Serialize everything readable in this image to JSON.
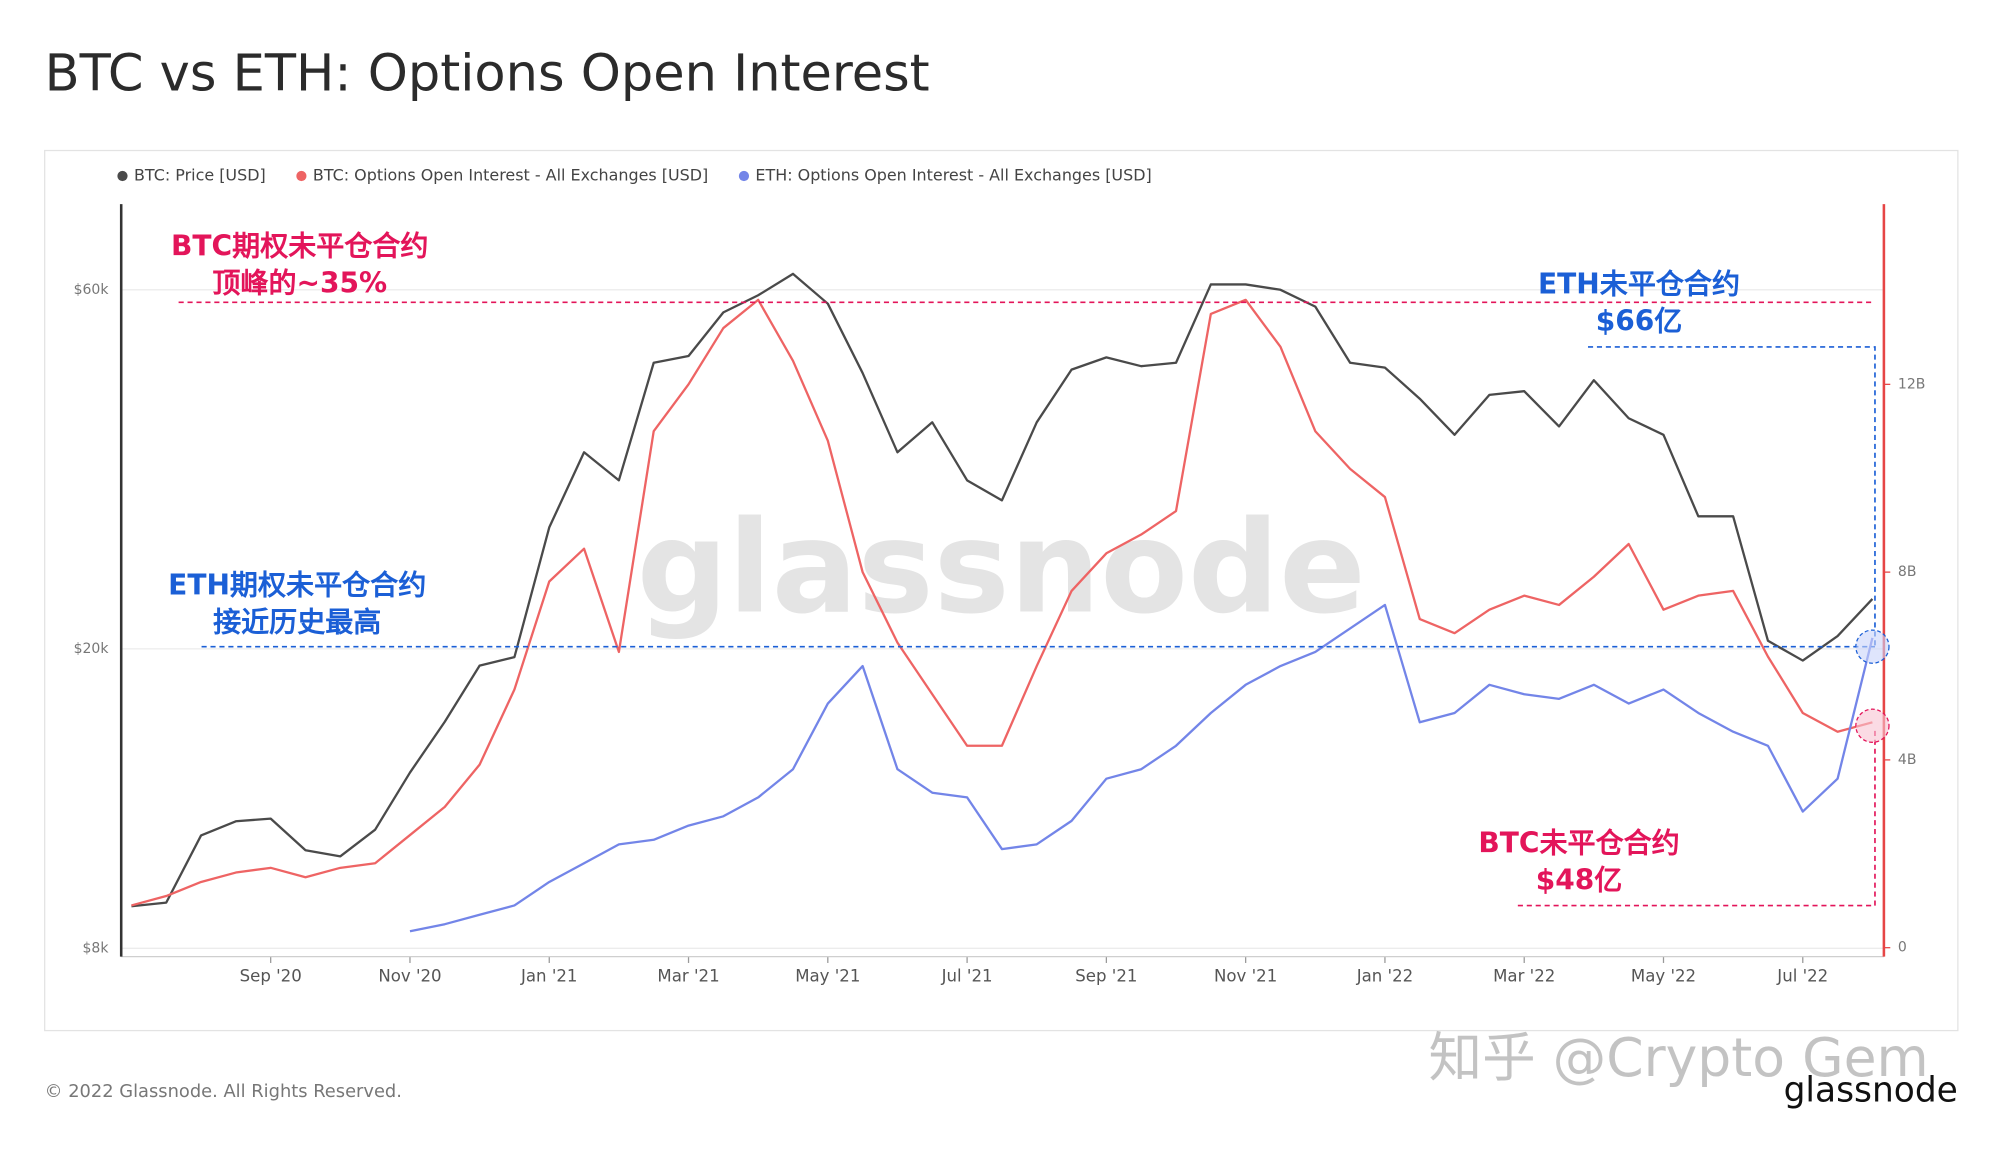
{
  "chart_data": {
    "type": "line",
    "title": "BTC vs ETH: Options Open Interest",
    "categories": [
      null,
      null,
      null,
      null,
      "Sep '20",
      null,
      null,
      null,
      "Nov '20",
      null,
      null,
      null,
      "Jan '21",
      null,
      null,
      null,
      "Mar '21",
      null,
      null,
      null,
      "May '21",
      null,
      null,
      null,
      "Jul '21",
      null,
      null,
      null,
      "Sep '21",
      null,
      null,
      null,
      "Nov '21",
      null,
      null,
      null,
      "Jan '22",
      null,
      null,
      null,
      "Mar '22",
      null,
      null,
      null,
      "May '22",
      null,
      null,
      null,
      "Jul '22",
      null,
      null
    ],
    "series": [
      {
        "name": "BTC: Price [USD]",
        "color": "#4a4a4a",
        "axis": "y",
        "values": [
          9100,
          9200,
          11300,
          11800,
          11900,
          10800,
          10600,
          11500,
          13700,
          16000,
          19000,
          19500,
          29000,
          36500,
          33500,
          48000,
          49000,
          56000,
          59000,
          63000,
          57500,
          46500,
          36500,
          40000,
          33500,
          31500,
          40000,
          47000,
          48800,
          47500,
          48000,
          61000,
          61000,
          60000,
          57000,
          48000,
          47300,
          43000,
          38500,
          43500,
          44000,
          39500,
          45500,
          40500,
          38500,
          30000,
          30000,
          20500,
          19300,
          20800,
          23300
        ]
      },
      {
        "name": "BTC: Options Open Interest - All Exchanges [USD]",
        "color": "#ee6464",
        "axis": "y2",
        "values": [
          0.9,
          1.1,
          1.4,
          1.6,
          1.7,
          1.5,
          1.7,
          1.8,
          2.4,
          3.0,
          3.9,
          5.5,
          7.8,
          8.5,
          6.3,
          11.0,
          12.0,
          13.2,
          13.8,
          12.5,
          10.8,
          8.0,
          6.5,
          5.4,
          4.3,
          4.3,
          6.0,
          7.6,
          8.4,
          8.8,
          9.3,
          13.5,
          13.8,
          12.8,
          11.0,
          10.2,
          9.6,
          7.0,
          6.7,
          7.2,
          7.5,
          7.3,
          7.9,
          8.6,
          7.2,
          7.5,
          7.6,
          6.2,
          5.0,
          4.6,
          4.8
        ]
      },
      {
        "name": "ETH: Options Open Interest - All Exchanges [USD]",
        "color": "#7385e8",
        "axis": "y2",
        "values": [
          null,
          null,
          null,
          null,
          null,
          null,
          null,
          null,
          0.35,
          0.5,
          0.7,
          0.9,
          1.4,
          1.8,
          2.2,
          2.3,
          2.6,
          2.8,
          3.2,
          3.8,
          5.2,
          6.0,
          3.8,
          3.3,
          3.2,
          2.1,
          2.2,
          2.7,
          3.6,
          3.8,
          4.3,
          5.0,
          5.6,
          6.0,
          6.3,
          6.8,
          7.3,
          4.8,
          5.0,
          5.6,
          5.4,
          5.3,
          5.6,
          5.2,
          5.5,
          5.0,
          4.6,
          4.3,
          2.9,
          3.6,
          6.6
        ]
      }
    ],
    "ylog": true,
    "ylim": [
      7800,
      78000
    ],
    "yticks": [
      {
        "value": 8000,
        "label": "$8k"
      },
      {
        "value": 20000,
        "label": "$20k"
      },
      {
        "value": 60000,
        "label": "$60k"
      }
    ],
    "y2lim": [
      -0.19,
      15.84
    ],
    "y2ticks": [
      0,
      {
        "value": 4,
        "label": "4B"
      },
      {
        "value": 8,
        "label": "8B"
      },
      {
        "value": 12,
        "label": "12B"
      }
    ],
    "grid": true,
    "legend": "top-left",
    "annotations": [
      {
        "text": [
          "BTC期权未平仓合约",
          "顶峰的~35%"
        ],
        "color": "#e3155a"
      },
      {
        "text": [
          "ETH未平仓合约",
          "$66亿"
        ],
        "color": "#1b5fd6"
      },
      {
        "text": [
          "ETH期权未平仓合约",
          "接近历史最高"
        ],
        "color": "#1b5fd6"
      },
      {
        "text": [
          "BTC未平仓合约",
          "$48亿"
        ],
        "color": "#e3155a"
      }
    ]
  },
  "watermark": "glassnode",
  "overlay_text": "知乎 @Crypto Gem",
  "logo": "glassnode",
  "footer": "© 2022 Glassnode. All Rights Reserved."
}
